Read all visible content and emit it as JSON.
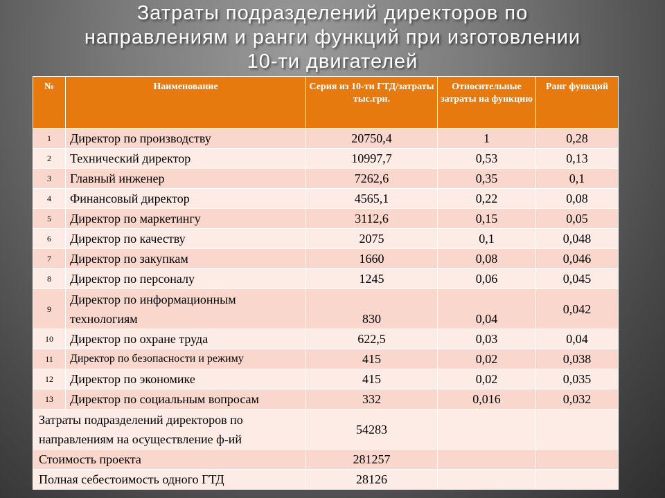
{
  "title": {
    "line1": "Затраты подразделений директоров по",
    "line2": "направлениям и ранги функций при изготовлении",
    "line3": "10-ти двигателей"
  },
  "table": {
    "headers": [
      "№",
      "Наименование",
      "Серия из 10-ти ГТД/затраты тыс.грн.",
      "Относительные затраты на функцию",
      "Ранг функций"
    ],
    "rows": [
      {
        "num": "1",
        "name": "Директор по производству",
        "cost": "20750,4",
        "rel": "1",
        "rank": "0,28"
      },
      {
        "num": "2",
        "name": "Технический директор",
        "cost": "10997,7",
        "rel": "0,53",
        "rank": "0,13"
      },
      {
        "num": "3",
        "name": "Главный инженер",
        "cost": "7262,6",
        "rel": "0,35",
        "rank": "0,1"
      },
      {
        "num": "4",
        "name": "Финансовый директор",
        "cost": "4565,1",
        "rel": "0,22",
        "rank": "0,08"
      },
      {
        "num": "5",
        "name": "Директор по маркетингу",
        "cost": "3112,6",
        "rel": "0,15",
        "rank": "0,05"
      },
      {
        "num": "6",
        "name": "Директор по качеству",
        "cost": "2075",
        "rel": "0,1",
        "rank": "0,048"
      },
      {
        "num": "7",
        "name": "Директор по закупкам",
        "cost": "1660",
        "rel": "0,08",
        "rank": "0,046"
      },
      {
        "num": "8",
        "name": "Директор по персоналу",
        "cost": "1245",
        "rel": "0,06",
        "rank": "0,045"
      },
      {
        "num": "9",
        "name": "Директор по информационным технологиям",
        "cost": "830",
        "rel": "0,04",
        "rank": "0,042"
      },
      {
        "num": "10",
        "name": "Директор по охране труда",
        "cost": "622,5",
        "rel": "0,03",
        "rank": "0,04"
      },
      {
        "num": "11",
        "name": "Директор по безопасности и режиму",
        "cost": "415",
        "rel": "0,02",
        "rank": "0,038"
      },
      {
        "num": "12",
        "name": "Директор по экономике",
        "cost": "415",
        "rel": "0,02",
        "rank": "0,035"
      },
      {
        "num": "13",
        "name": "Директор по социальным вопросам",
        "cost": "332",
        "rel": "0,016",
        "rank": "0,032"
      }
    ],
    "summary": [
      {
        "label": "Затраты подразделений директоров по направлениям на осуществление ф-ий",
        "value": "54283"
      },
      {
        "label": "Стоимость проекта",
        "value": "281257"
      },
      {
        "label": "Полная себестоимость одного ГТД",
        "value": "28126"
      }
    ]
  }
}
